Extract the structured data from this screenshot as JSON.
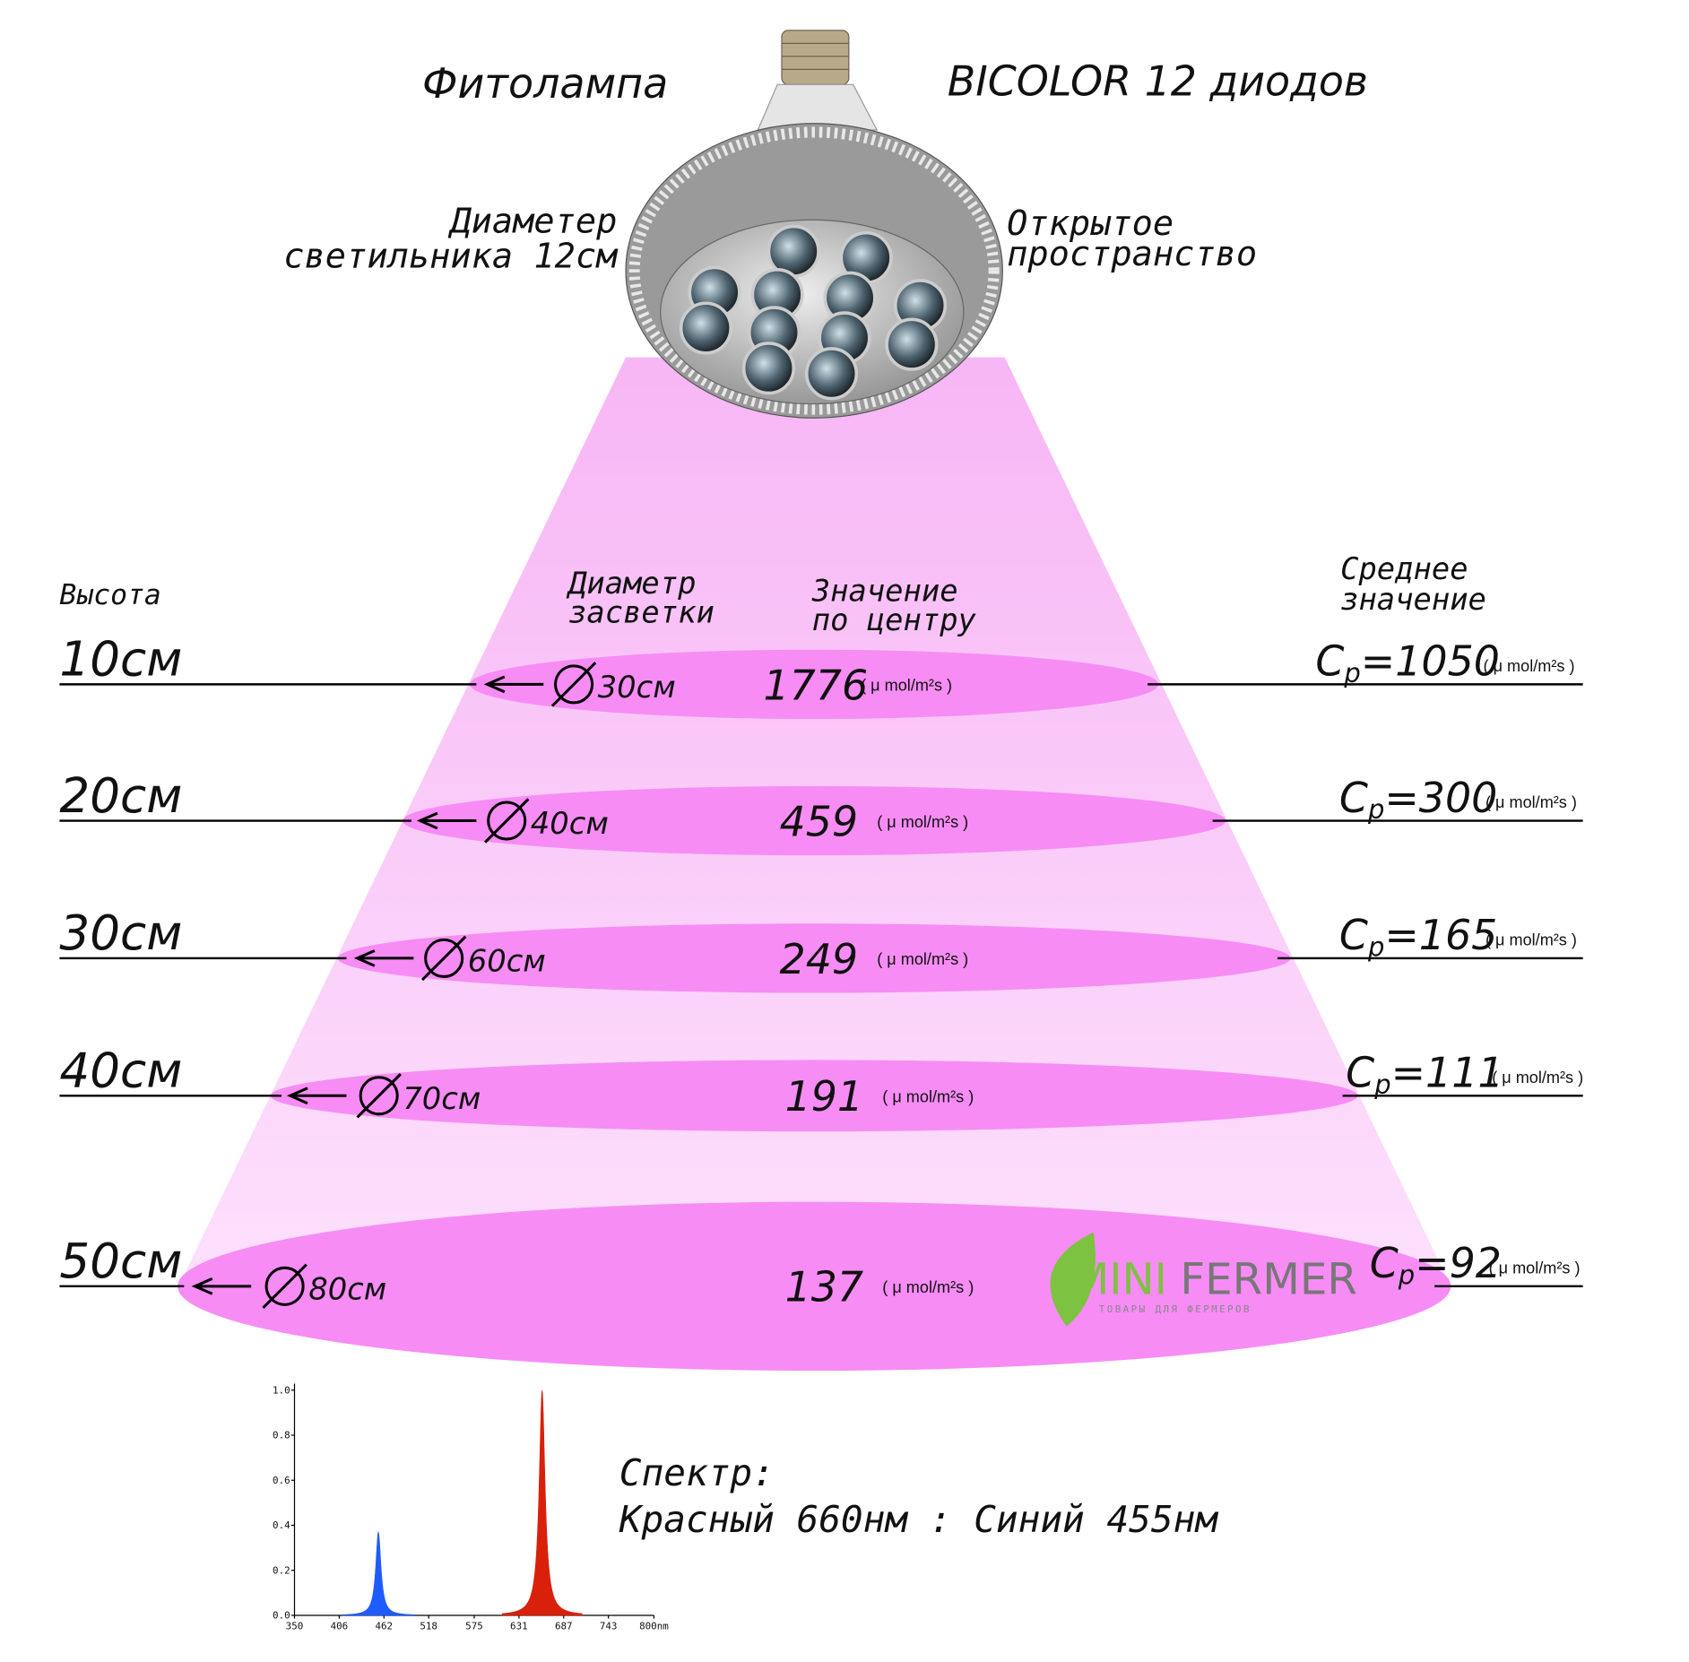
{
  "header": {
    "title_left": "Фитолампа",
    "title_right": "BICOLOR 12 диодов",
    "lamp_diameter": [
      "Диаметер",
      "светильника 12см"
    ],
    "open_space": [
      "Открытое",
      "пространство"
    ]
  },
  "columns": {
    "height": "Высота",
    "diameter": [
      "Диаметр",
      "засветки"
    ],
    "center": [
      "Значение",
      "по центру"
    ],
    "average": [
      "Среднее",
      "значение"
    ]
  },
  "unit": "( μ mol/m²s )",
  "average_symbol": {
    "main": "C",
    "sub": "p"
  },
  "rows": [
    {
      "height": "10см",
      "diameter": "30см",
      "center": "1776",
      "average": "=1050"
    },
    {
      "height": "20см",
      "diameter": "40см",
      "center": "459",
      "average": "=300"
    },
    {
      "height": "30см",
      "diameter": "60см",
      "center": "249",
      "average": "=165"
    },
    {
      "height": "40см",
      "diameter": "70см",
      "center": "191",
      "average": "=111"
    },
    {
      "height": "50см",
      "diameter": "80см",
      "center": "137",
      "average": "=92"
    }
  ],
  "logo": {
    "part1": "MINI",
    "part2": "FERMER",
    "tagline": "ТОВАРЫ ДЛЯ ФЕРМЕРОВ"
  },
  "spectrum": {
    "xlim": [
      350,
      800
    ],
    "ylim": [
      0,
      1.0
    ],
    "xticks": [
      350,
      406,
      462,
      518,
      575,
      631,
      687,
      743,
      {
        "value": 800,
        "label": "800nm"
      }
    ],
    "yticks": [
      {
        "value": 0,
        "label": "0.0"
      },
      {
        "value": 0.2,
        "label": "0.2"
      },
      {
        "value": 0.4,
        "label": "0.4"
      },
      {
        "value": 0.6,
        "label": "0.6"
      },
      {
        "value": 0.8,
        "label": "0.8"
      },
      {
        "value": 1.0,
        "label": "1.0"
      }
    ],
    "peaks": [
      {
        "center": 455,
        "height": 0.37,
        "width": 9,
        "color": "#1f5cff"
      },
      {
        "center": 660,
        "height": 1.0,
        "width": 10,
        "color": "#d8200a"
      }
    ],
    "caption": [
      "Спектр:",
      "Красный 660нм : Синий 455нм"
    ]
  }
}
